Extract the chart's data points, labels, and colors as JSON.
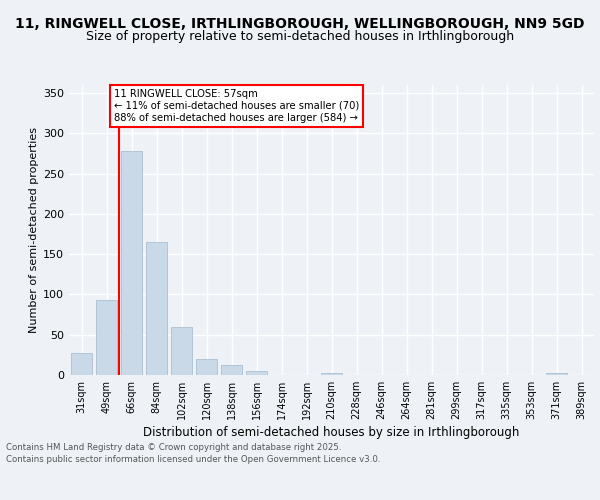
{
  "title1": "11, RINGWELL CLOSE, IRTHLINGBOROUGH, WELLINGBOROUGH, NN9 5GD",
  "title2": "Size of property relative to semi-detached houses in Irthlingborough",
  "xlabel": "Distribution of semi-detached houses by size in Irthlingborough",
  "ylabel": "Number of semi-detached properties",
  "categories": [
    "31sqm",
    "49sqm",
    "66sqm",
    "84sqm",
    "102sqm",
    "120sqm",
    "138sqm",
    "156sqm",
    "174sqm",
    "192sqm",
    "210sqm",
    "228sqm",
    "246sqm",
    "264sqm",
    "281sqm",
    "299sqm",
    "317sqm",
    "335sqm",
    "353sqm",
    "371sqm",
    "389sqm"
  ],
  "values": [
    27,
    93,
    278,
    165,
    60,
    20,
    13,
    5,
    0,
    0,
    3,
    0,
    0,
    0,
    0,
    0,
    0,
    0,
    0,
    2,
    0
  ],
  "bar_color": "#c9d9e8",
  "bar_edge_color": "#a0b8cc",
  "red_line_x": 1.5,
  "annotation_title": "11 RINGWELL CLOSE: 57sqm",
  "annotation_line1": "← 11% of semi-detached houses are smaller (70)",
  "annotation_line2": "88% of semi-detached houses are larger (584) →",
  "footer1": "Contains HM Land Registry data © Crown copyright and database right 2025.",
  "footer2": "Contains public sector information licensed under the Open Government Licence v3.0.",
  "ylim": [
    0,
    360
  ],
  "yticks": [
    0,
    50,
    100,
    150,
    200,
    250,
    300,
    350
  ],
  "bg_color": "#eef2f7",
  "grid_color": "#ffffff",
  "title_fontsize": 10,
  "subtitle_fontsize": 9
}
